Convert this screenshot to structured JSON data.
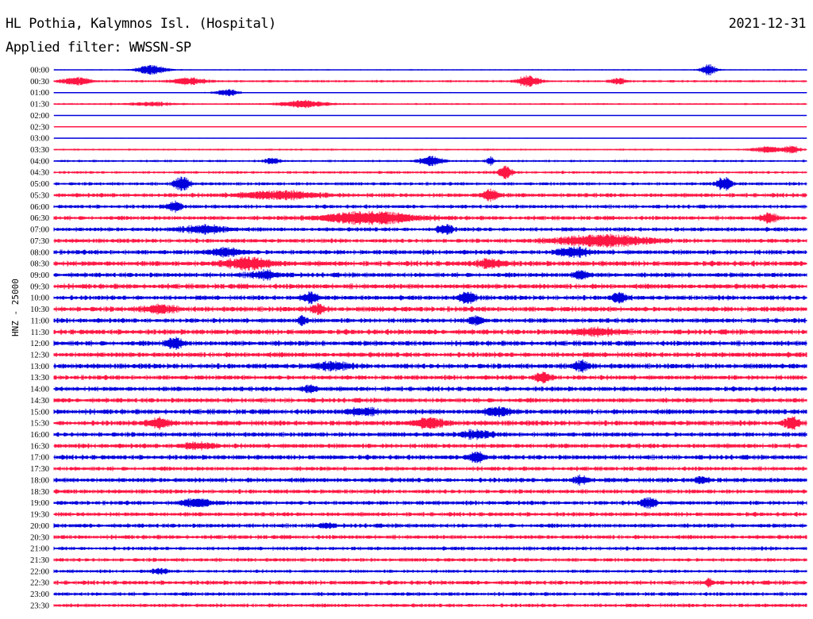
{
  "header": {
    "station": "HL Pothia, Kalymnos Isl. (Hospital)",
    "date": "2021-12-31",
    "filter": "Applied filter: WWSSN-SP",
    "channel": "HNZ - 25000"
  },
  "colors": {
    "even_row": "#0000dd",
    "odd_row": "#ff1744"
  },
  "chart_data": {
    "type": "line",
    "title": "HL Pothia, Kalymnos Isl. (Hospital)",
    "subtitle": "Applied filter: WWSSN-SP",
    "ylabel": "HNZ - 25000",
    "xlabel": "",
    "grid": false,
    "rows": [
      {
        "label": "00:00",
        "noise": 0.12,
        "events": [
          [
            0.13,
            0.8,
            0.02
          ],
          [
            0.87,
            1.0,
            0.01
          ]
        ]
      },
      {
        "label": "00:30",
        "noise": 0.25,
        "events": [
          [
            0.03,
            0.6,
            0.02
          ],
          [
            0.18,
            0.6,
            0.02
          ],
          [
            0.63,
            0.9,
            0.015
          ],
          [
            0.75,
            0.5,
            0.01
          ]
        ]
      },
      {
        "label": "01:00",
        "noise": 0.12,
        "events": [
          [
            0.23,
            0.6,
            0.015
          ]
        ]
      },
      {
        "label": "01:30",
        "noise": 0.2,
        "events": [
          [
            0.33,
            0.6,
            0.03
          ],
          [
            0.13,
            0.3,
            0.03
          ]
        ]
      },
      {
        "label": "02:00",
        "noise": 0.06,
        "events": []
      },
      {
        "label": "02:30",
        "noise": 0.08,
        "events": []
      },
      {
        "label": "03:00",
        "noise": 0.1,
        "events": []
      },
      {
        "label": "03:30",
        "noise": 0.2,
        "events": [
          [
            0.95,
            0.5,
            0.02
          ],
          [
            0.98,
            0.6,
            0.01
          ]
        ]
      },
      {
        "label": "04:00",
        "noise": 0.25,
        "events": [
          [
            0.29,
            0.5,
            0.01
          ],
          [
            0.5,
            0.8,
            0.015
          ],
          [
            0.58,
            0.7,
            0.005
          ]
        ]
      },
      {
        "label": "04:30",
        "noise": 0.3,
        "events": [
          [
            0.6,
            1.2,
            0.008
          ]
        ]
      },
      {
        "label": "05:00",
        "noise": 0.35,
        "events": [
          [
            0.17,
            1.2,
            0.01
          ],
          [
            0.89,
            1.1,
            0.01
          ]
        ]
      },
      {
        "label": "05:30",
        "noise": 0.45,
        "events": [
          [
            0.3,
            0.6,
            0.05
          ],
          [
            0.58,
            1.0,
            0.01
          ]
        ]
      },
      {
        "label": "06:00",
        "noise": 0.4,
        "events": [
          [
            0.16,
            0.8,
            0.01
          ]
        ]
      },
      {
        "label": "06:30",
        "noise": 0.45,
        "events": [
          [
            0.42,
            1.0,
            0.06
          ],
          [
            0.95,
            0.8,
            0.01
          ]
        ]
      },
      {
        "label": "07:00",
        "noise": 0.45,
        "events": [
          [
            0.2,
            0.6,
            0.03
          ],
          [
            0.52,
            0.8,
            0.01
          ]
        ]
      },
      {
        "label": "07:30",
        "noise": 0.45,
        "events": [
          [
            0.73,
            0.9,
            0.06
          ]
        ]
      },
      {
        "label": "08:00",
        "noise": 0.5,
        "events": [
          [
            0.23,
            0.6,
            0.02
          ],
          [
            0.69,
            0.7,
            0.02
          ]
        ]
      },
      {
        "label": "08:30",
        "noise": 0.55,
        "events": [
          [
            0.26,
            0.9,
            0.03
          ],
          [
            0.58,
            0.6,
            0.02
          ]
        ]
      },
      {
        "label": "09:00",
        "noise": 0.5,
        "events": [
          [
            0.28,
            0.6,
            0.02
          ],
          [
            0.7,
            0.7,
            0.01
          ]
        ]
      },
      {
        "label": "09:30",
        "noise": 0.55,
        "events": []
      },
      {
        "label": "10:00",
        "noise": 0.5,
        "events": [
          [
            0.34,
            0.8,
            0.01
          ],
          [
            0.55,
            0.9,
            0.01
          ],
          [
            0.75,
            0.7,
            0.01
          ]
        ]
      },
      {
        "label": "10:30",
        "noise": 0.55,
        "events": [
          [
            0.14,
            0.6,
            0.02
          ],
          [
            0.35,
            0.7,
            0.01
          ]
        ]
      },
      {
        "label": "11:00",
        "noise": 0.5,
        "events": [
          [
            0.33,
            0.8,
            0.005
          ],
          [
            0.56,
            0.6,
            0.01
          ]
        ]
      },
      {
        "label": "11:30",
        "noise": 0.55,
        "events": [
          [
            0.72,
            0.5,
            0.03
          ]
        ]
      },
      {
        "label": "12:00",
        "noise": 0.55,
        "events": [
          [
            0.16,
            0.9,
            0.01
          ]
        ]
      },
      {
        "label": "12:30",
        "noise": 0.55,
        "events": []
      },
      {
        "label": "13:00",
        "noise": 0.55,
        "events": [
          [
            0.37,
            0.6,
            0.02
          ],
          [
            0.7,
            0.8,
            0.01
          ]
        ]
      },
      {
        "label": "13:30",
        "noise": 0.5,
        "events": [
          [
            0.65,
            0.9,
            0.01
          ]
        ]
      },
      {
        "label": "14:00",
        "noise": 0.5,
        "events": [
          [
            0.34,
            0.5,
            0.01
          ]
        ]
      },
      {
        "label": "14:30",
        "noise": 0.5,
        "events": []
      },
      {
        "label": "15:00",
        "noise": 0.55,
        "events": [
          [
            0.59,
            0.7,
            0.015
          ],
          [
            0.41,
            0.5,
            0.02
          ]
        ]
      },
      {
        "label": "15:30",
        "noise": 0.55,
        "events": [
          [
            0.14,
            0.8,
            0.015
          ],
          [
            0.5,
            0.7,
            0.02
          ],
          [
            0.98,
            1.0,
            0.01
          ]
        ]
      },
      {
        "label": "16:00",
        "noise": 0.5,
        "events": [
          [
            0.56,
            0.6,
            0.02
          ]
        ]
      },
      {
        "label": "16:30",
        "noise": 0.5,
        "events": [
          [
            0.19,
            0.5,
            0.02
          ]
        ]
      },
      {
        "label": "17:00",
        "noise": 0.5,
        "events": [
          [
            0.56,
            0.9,
            0.01
          ]
        ]
      },
      {
        "label": "17:30",
        "noise": 0.45,
        "events": []
      },
      {
        "label": "18:00",
        "noise": 0.5,
        "events": [
          [
            0.7,
            0.6,
            0.01
          ],
          [
            0.86,
            0.5,
            0.01
          ]
        ]
      },
      {
        "label": "18:30",
        "noise": 0.45,
        "events": []
      },
      {
        "label": "19:00",
        "noise": 0.45,
        "events": [
          [
            0.19,
            0.6,
            0.02
          ],
          [
            0.79,
            0.8,
            0.01
          ]
        ]
      },
      {
        "label": "19:30",
        "noise": 0.45,
        "events": []
      },
      {
        "label": "20:00",
        "noise": 0.45,
        "events": [
          [
            0.36,
            0.4,
            0.01
          ]
        ]
      },
      {
        "label": "20:30",
        "noise": 0.45,
        "events": []
      },
      {
        "label": "21:00",
        "noise": 0.4,
        "events": []
      },
      {
        "label": "21:30",
        "noise": 0.4,
        "events": []
      },
      {
        "label": "22:00",
        "noise": 0.35,
        "events": [
          [
            0.14,
            0.4,
            0.01
          ]
        ]
      },
      {
        "label": "22:30",
        "noise": 0.45,
        "events": [
          [
            0.87,
            0.8,
            0.005
          ]
        ]
      },
      {
        "label": "23:00",
        "noise": 0.4,
        "events": []
      },
      {
        "label": "23:30",
        "noise": 0.4,
        "events": []
      }
    ]
  }
}
